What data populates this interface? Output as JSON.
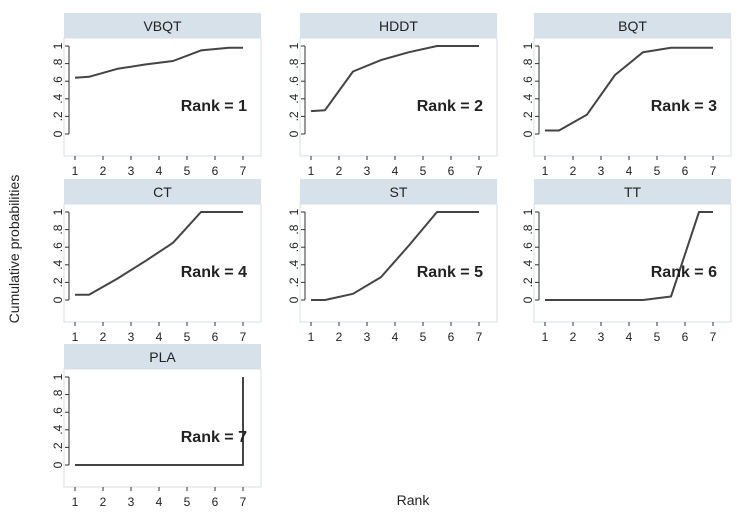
{
  "figure": {
    "xlabel": "Rank",
    "ylabel": "Cumulative probabilities"
  },
  "chart_data": [
    {
      "type": "line",
      "title": "VBQT",
      "annotation": "Rank = 1",
      "x": [
        1,
        1.5,
        2.5,
        3.5,
        4.5,
        5.5,
        6.5,
        7
      ],
      "values": [
        0.64,
        0.65,
        0.74,
        0.79,
        0.83,
        0.95,
        0.98,
        0.98
      ],
      "xticks": [
        "1",
        "2",
        "3",
        "4",
        "5",
        "6",
        "7"
      ],
      "yticks": [
        "0",
        ".2",
        ".4",
        ".6",
        ".8",
        "1"
      ],
      "xlim": [
        1,
        7
      ],
      "ylim": [
        0,
        1
      ],
      "grid": false
    },
    {
      "type": "line",
      "title": "HDDT",
      "annotation": "Rank = 2",
      "x": [
        1,
        1.5,
        2.5,
        3.5,
        4.5,
        5.5,
        6.5,
        7
      ],
      "values": [
        0.26,
        0.27,
        0.71,
        0.84,
        0.93,
        1.0,
        1.0,
        1.0
      ],
      "xticks": [
        "1",
        "2",
        "3",
        "4",
        "5",
        "6",
        "7"
      ],
      "yticks": [
        "0",
        ".2",
        ".4",
        ".6",
        ".8",
        "1"
      ],
      "xlim": [
        1,
        7
      ],
      "ylim": [
        0,
        1
      ],
      "grid": false
    },
    {
      "type": "line",
      "title": "BQT",
      "annotation": "Rank = 3",
      "x": [
        1,
        1.5,
        2.5,
        3.5,
        4.5,
        5.5,
        6.5,
        7
      ],
      "values": [
        0.04,
        0.04,
        0.22,
        0.67,
        0.93,
        0.98,
        0.98,
        0.98
      ],
      "xticks": [
        "1",
        "2",
        "3",
        "4",
        "5",
        "6",
        "7"
      ],
      "yticks": [
        "0",
        ".2",
        ".4",
        ".6",
        ".8",
        "1"
      ],
      "xlim": [
        1,
        7
      ],
      "ylim": [
        0,
        1
      ],
      "grid": false
    },
    {
      "type": "line",
      "title": "CT",
      "annotation": "Rank = 4",
      "x": [
        1,
        1.5,
        2.5,
        3.5,
        4.5,
        5.5,
        6.5,
        7
      ],
      "values": [
        0.06,
        0.06,
        0.24,
        0.44,
        0.65,
        1.0,
        1.0,
        1.0
      ],
      "xticks": [
        "1",
        "2",
        "3",
        "4",
        "5",
        "6",
        "7"
      ],
      "yticks": [
        "0",
        ".2",
        ".4",
        ".6",
        ".8",
        "1"
      ],
      "xlim": [
        1,
        7
      ],
      "ylim": [
        0,
        1
      ],
      "grid": false
    },
    {
      "type": "line",
      "title": "ST",
      "annotation": "Rank = 5",
      "x": [
        1,
        1.5,
        2.5,
        3.5,
        4.5,
        5.5,
        6.5,
        7
      ],
      "values": [
        0.0,
        0.0,
        0.07,
        0.26,
        0.62,
        1.0,
        1.0,
        1.0
      ],
      "xticks": [
        "1",
        "2",
        "3",
        "4",
        "5",
        "6",
        "7"
      ],
      "yticks": [
        "0",
        ".2",
        ".4",
        ".6",
        ".8",
        "1"
      ],
      "xlim": [
        1,
        7
      ],
      "ylim": [
        0,
        1
      ],
      "grid": false
    },
    {
      "type": "line",
      "title": "TT",
      "annotation": "Rank = 6",
      "x": [
        1,
        1.5,
        2.5,
        3.5,
        4.5,
        5.5,
        6.5,
        7
      ],
      "values": [
        0.0,
        0.0,
        0.0,
        0.0,
        0.0,
        0.04,
        1.0,
        1.0
      ],
      "xticks": [
        "1",
        "2",
        "3",
        "4",
        "5",
        "6",
        "7"
      ],
      "yticks": [
        "0",
        ".2",
        ".4",
        ".6",
        ".8",
        "1"
      ],
      "xlim": [
        1,
        7
      ],
      "ylim": [
        0,
        1
      ],
      "grid": false
    },
    {
      "type": "line",
      "title": "PLA",
      "annotation": "Rank = 7",
      "x": [
        1,
        1.5,
        2.5,
        3.5,
        4.5,
        5.5,
        6.5,
        7,
        7
      ],
      "values": [
        0.0,
        0.0,
        0.0,
        0.0,
        0.0,
        0.0,
        0.0,
        0.0,
        1.0
      ],
      "xticks": [
        "1",
        "2",
        "3",
        "4",
        "5",
        "6",
        "7"
      ],
      "yticks": [
        "0",
        ".2",
        ".4",
        ".6",
        ".8",
        "1"
      ],
      "xlim": [
        1,
        7
      ],
      "ylim": [
        0,
        1
      ],
      "grid": false
    }
  ]
}
